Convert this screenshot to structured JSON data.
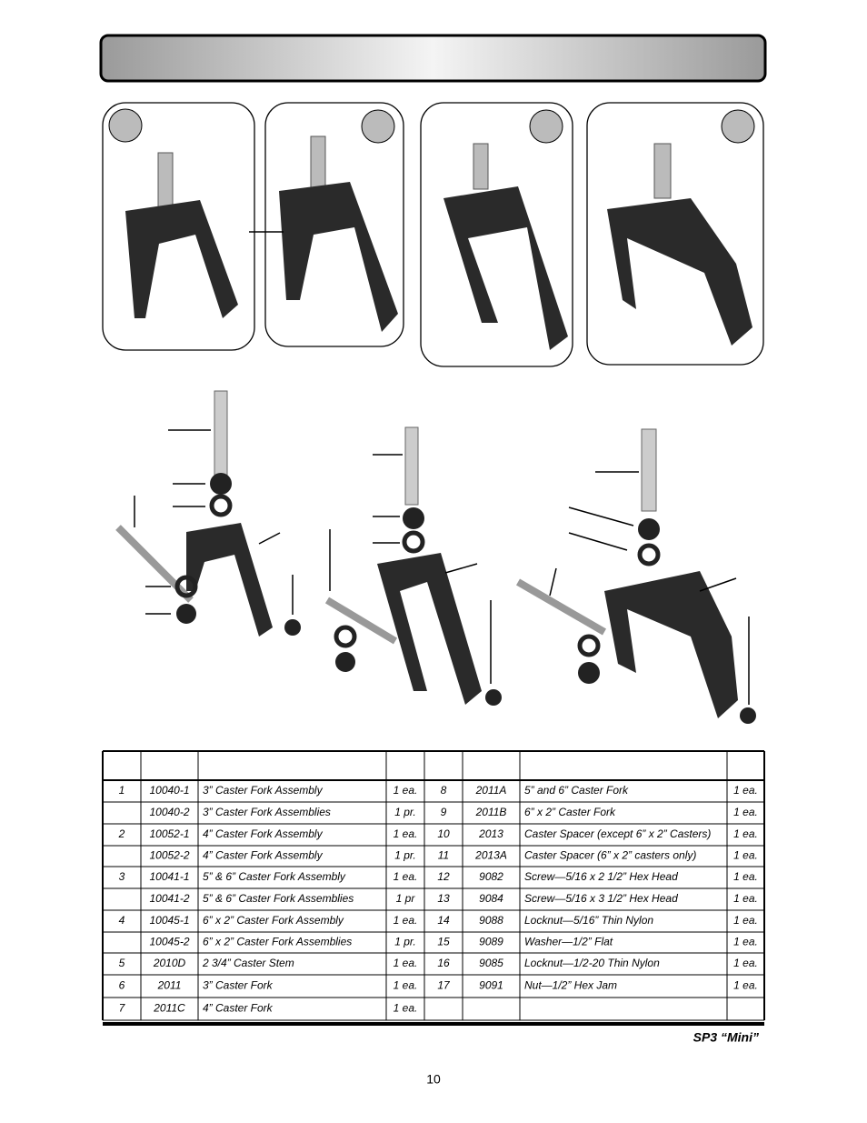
{
  "table": {
    "rows": [
      [
        "1",
        "10040-1",
        "3” Caster Fork Assembly",
        "1 ea.",
        "8",
        "2011A",
        "5” and 6” Caster Fork",
        "1 ea."
      ],
      [
        null,
        "10040-2",
        "3” Caster Fork Assemblies",
        "1 pr.",
        "9",
        "2011B",
        "6” x 2” Caster Fork",
        "1 ea."
      ],
      [
        "2",
        "10052-1",
        "4” Caster Fork Assembly",
        "1 ea.",
        "10",
        "2013",
        "Caster Spacer (except 6” x 2” Casters)",
        "1 ea."
      ],
      [
        null,
        "10052-2",
        "4” Caster Fork Assembly",
        "1 pr.",
        "11",
        "2013A",
        "Caster Spacer (6” x 2” casters only)",
        "1 ea."
      ],
      [
        "3",
        "10041-1",
        "5” & 6” Caster Fork Assembly",
        "1 ea.",
        "12",
        "9082",
        "Screw—5/16 x 2 1/2” Hex Head",
        "1 ea."
      ],
      [
        null,
        "10041-2",
        "5” & 6” Caster Fork Assemblies",
        "1 pr",
        "13",
        "9084",
        "Screw—5/16 x 3 1/2” Hex Head",
        "1 ea."
      ],
      [
        "4",
        "10045-1",
        "6” x 2” Caster Fork Assembly",
        "1 ea.",
        "14",
        "9088",
        "Locknut—5/16” Thin Nylon",
        "1 ea."
      ],
      [
        null,
        "10045-2",
        "6” x 2” Caster Fork Assemblies",
        "1 pr.",
        "15",
        "9089",
        "Washer—1/2” Flat",
        "1 ea."
      ],
      [
        "5",
        "2010D",
        "2 3/4” Caster Stem",
        "1 ea.",
        "16",
        "9085",
        "Locknut—1/2-20 Thin Nylon",
        "1 ea."
      ],
      [
        "6",
        "2011",
        "3” Caster Fork",
        "1 ea.",
        "17",
        "9091",
        "Nut—1/2” Hex Jam",
        "1 ea."
      ],
      [
        "7",
        "2011C",
        "4” Caster Fork",
        "1 ea.",
        null,
        null,
        null,
        null
      ]
    ]
  },
  "footer": {
    "model": "SP3 “Mini”",
    "page": "10"
  }
}
